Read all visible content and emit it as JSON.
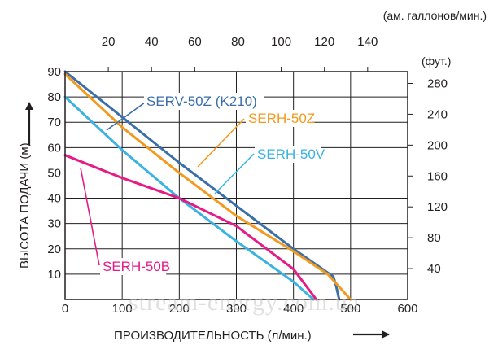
{
  "chart_data": {
    "type": "line",
    "xlabel": "ПРОИЗВОДИТЕЛЬНОСТЬ (л/мин.)",
    "ylabel": "ВЫСОТА ПОДАЧИ (м)",
    "x_ticks": [
      "0",
      "100",
      "200",
      "300",
      "400",
      "500",
      "600"
    ],
    "y_ticks": [
      "10",
      "20",
      "30",
      "40",
      "50",
      "60",
      "70",
      "80",
      "90"
    ],
    "xlim": [
      0,
      600
    ],
    "ylim": [
      0,
      90
    ],
    "grid": true,
    "top_axis": {
      "unit_label": "(ам. галлонов/мин.)",
      "ticks": [
        "20",
        "40",
        "60",
        "80",
        "100",
        "120",
        "140"
      ],
      "tick_values": [
        20,
        40,
        60,
        80,
        100,
        120,
        140
      ]
    },
    "right_axis": {
      "unit_label": "(фут.)",
      "ticks": [
        "40",
        "80",
        "120",
        "160",
        "200",
        "240",
        "280"
      ],
      "tick_values": [
        40,
        80,
        120,
        160,
        200,
        240,
        280
      ]
    },
    "series": [
      {
        "name": "SERV-50Z (K210)",
        "color": "#3a6fa8",
        "x": [
          0,
          100,
          200,
          300,
          400,
          470,
          475,
          480
        ],
        "y": [
          90,
          72,
          54,
          37,
          20,
          9,
          5,
          0
        ]
      },
      {
        "name": "SERH-50Z",
        "color": "#f39a1e",
        "x": [
          0,
          100,
          200,
          300,
          400,
          460,
          500
        ],
        "y": [
          89,
          68,
          50,
          33,
          19,
          10,
          0
        ]
      },
      {
        "name": "SERH-50V",
        "color": "#3ab3e2",
        "x": [
          0,
          100,
          200,
          300,
          400,
          435
        ],
        "y": [
          80,
          59,
          40,
          23,
          7,
          0
        ]
      },
      {
        "name": "SERH-50B",
        "color": "#e51b86",
        "x": [
          0,
          100,
          200,
          300,
          400,
          440
        ],
        "y": [
          57,
          48,
          40,
          29,
          12,
          0
        ]
      }
    ]
  },
  "watermark": "stream-energy.com.ua"
}
